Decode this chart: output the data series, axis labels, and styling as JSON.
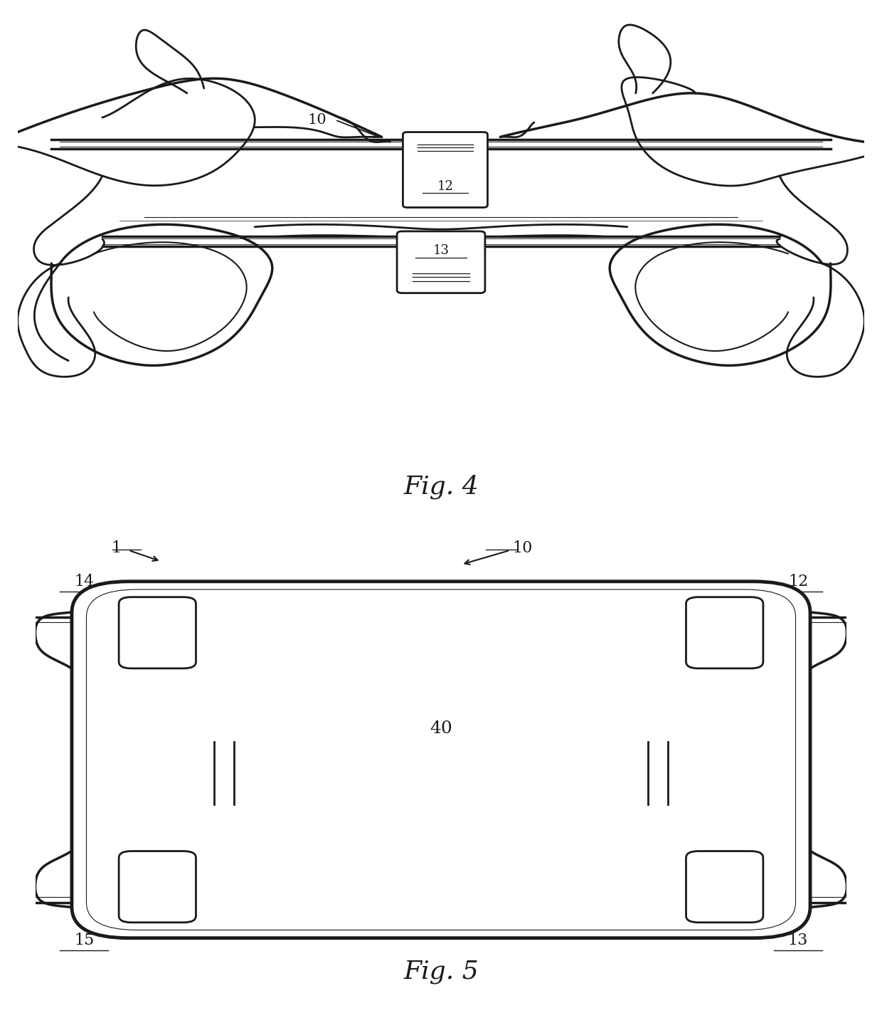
{
  "fig4_title": "Fig. 4",
  "fig5_title": "Fig. 5",
  "background_color": "#ffffff",
  "line_color": "#1a1a1a",
  "lw_main": 2.0,
  "lw_thin": 1.0,
  "label_fontsize": 16,
  "title_fontsize": 26
}
